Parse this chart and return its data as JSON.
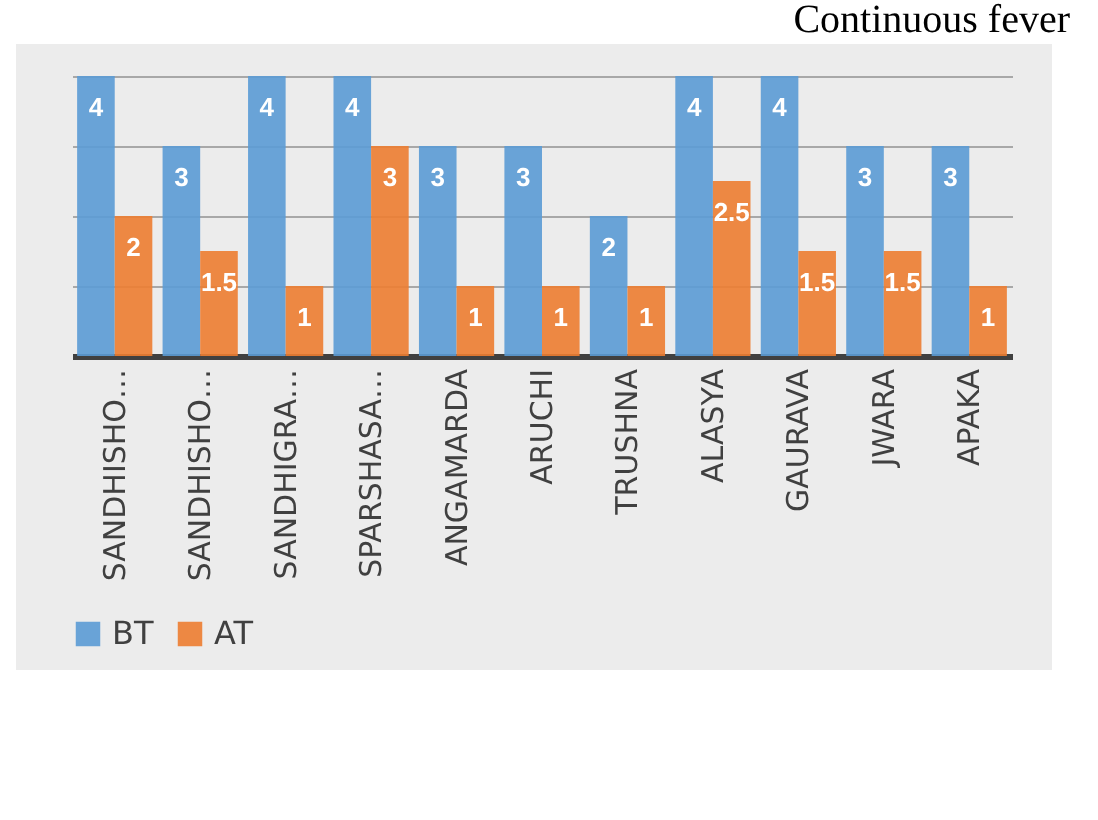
{
  "chart_data": {
    "type": "bar",
    "annotations": [
      "Continuous fever"
    ],
    "categories": [
      "SANDHISHO…",
      "SANDHISHO…",
      "SANDHIGRA…",
      "SPARSHASA…",
      "ANGAMARDA",
      "ARUCHI",
      "TRUSHNA",
      "ALASYA",
      "GAURAVA",
      "JWARA",
      "APAKA"
    ],
    "series": [
      {
        "name": "BT",
        "color": "#5b9bd5",
        "values": [
          4,
          3,
          4,
          4,
          3,
          3,
          2,
          4,
          4,
          3,
          3
        ]
      },
      {
        "name": "AT",
        "color": "#ed7d31",
        "values": [
          2,
          1.5,
          1,
          3,
          1,
          1,
          1,
          2.5,
          1.5,
          1.5,
          1
        ]
      }
    ],
    "grid": "y",
    "legend": "bottom",
    "data_labels": true,
    "tick_labels": "x"
  }
}
